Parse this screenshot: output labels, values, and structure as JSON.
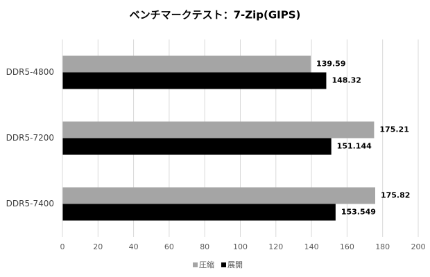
{
  "chart_data": {
    "type": "hbar",
    "title": "ベンチマークテスト：7-Zip(GIPS)",
    "categories": [
      "DDR5-4800",
      "DDR5-7200",
      "DDR5-7400"
    ],
    "series": [
      {
        "name": "圧縮",
        "color": "#a5a5a5",
        "values": [
          139.59,
          175.21,
          175.82
        ]
      },
      {
        "name": "展開",
        "color": "#000000",
        "values": [
          148.32,
          151.144,
          153.549
        ]
      }
    ],
    "xlim": [
      0,
      200
    ],
    "xticks": [
      0,
      20,
      40,
      60,
      80,
      100,
      120,
      140,
      160,
      180,
      200
    ],
    "grid": true,
    "legend": "bottom"
  }
}
